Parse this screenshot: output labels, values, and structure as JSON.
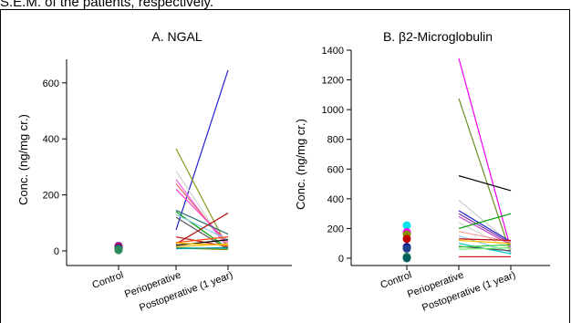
{
  "caption": "S.E.M. of the patients, respectively.",
  "chart_data": [
    {
      "type": "scatter+line",
      "title": "A. NGAL",
      "ylabel": "Conc. (ng/mg cr.)",
      "xlabel": "",
      "categories": [
        "Control",
        "Perioperative",
        "Postoperative (1 year)"
      ],
      "ylim": [
        -50,
        700
      ],
      "yticks": [
        0,
        200,
        400,
        600
      ],
      "grid": false,
      "control_points": [
        {
          "value": 18,
          "color": "#7030a0"
        },
        {
          "value": 15,
          "color": "#cc00cc"
        },
        {
          "value": 12,
          "color": "#c00000"
        },
        {
          "value": 9,
          "color": "#1f3f8f"
        },
        {
          "value": 6,
          "color": "#008080"
        },
        {
          "value": 3,
          "color": "#2e8b57"
        }
      ],
      "series": [
        {
          "values": [
            75,
            645
          ],
          "color": "#2222cc"
        },
        {
          "values": [
            365,
            10
          ],
          "color": "#8b9a1a"
        },
        {
          "values": [
            285,
            5
          ],
          "color": "#d3d3d3"
        },
        {
          "values": [
            255,
            8
          ],
          "color": "#ee66ee"
        },
        {
          "values": [
            240,
            20
          ],
          "color": "#e07070"
        },
        {
          "values": [
            220,
            30
          ],
          "color": "#ff44cc"
        },
        {
          "values": [
            145,
            60
          ],
          "color": "#2a6f6f"
        },
        {
          "values": [
            140,
            8
          ],
          "color": "#00a000"
        },
        {
          "values": [
            130,
            40
          ],
          "color": "#87ceeb"
        },
        {
          "values": [
            120,
            5
          ],
          "color": "#555555"
        },
        {
          "values": [
            50,
            15
          ],
          "color": "#cc2222"
        },
        {
          "values": [
            25,
            135
          ],
          "color": "#b01010"
        },
        {
          "values": [
            30,
            50
          ],
          "color": "#ff4400"
        },
        {
          "values": [
            20,
            40
          ],
          "color": "#000000"
        },
        {
          "values": [
            28,
            20
          ],
          "color": "#ffbf00"
        },
        {
          "values": [
            15,
            25
          ],
          "color": "#f4b400"
        },
        {
          "values": [
            12,
            8
          ],
          "color": "#20c0c0"
        },
        {
          "values": [
            10,
            5
          ],
          "color": "#888800"
        },
        {
          "values": [
            8,
            12
          ],
          "color": "#0099aa"
        }
      ]
    },
    {
      "type": "scatter+line",
      "title": "B. β2-Microglobulin",
      "ylabel": "Conc. (ng/mg cr.)",
      "xlabel": "",
      "categories": [
        "Control",
        "Perioperative",
        "Postoperative (1 year)"
      ],
      "ylim": [
        -50,
        1400
      ],
      "yticks": [
        0,
        200,
        400,
        600,
        800,
        1000,
        1200,
        1400
      ],
      "grid": false,
      "control_points": [
        {
          "value": 220,
          "color": "#00e5ee"
        },
        {
          "value": 175,
          "color": "#ff00ff"
        },
        {
          "value": 160,
          "color": "#8b8b00"
        },
        {
          "value": 130,
          "color": "#c00000"
        },
        {
          "value": 75,
          "color": "#000080"
        },
        {
          "value": 65,
          "color": "#1f3f8f"
        },
        {
          "value": 10,
          "color": "#2e8b57"
        },
        {
          "value": 0,
          "color": "#006060"
        }
      ],
      "series": [
        {
          "values": [
            1345,
            60
          ],
          "color": "#ee00ee"
        },
        {
          "values": [
            1075,
            30
          ],
          "color": "#6b8e23"
        },
        {
          "values": [
            555,
            455
          ],
          "color": "#000000"
        },
        {
          "values": [
            390,
            100
          ],
          "color": "#cccccc"
        },
        {
          "values": [
            320,
            110
          ],
          "color": "#2222cc"
        },
        {
          "values": [
            300,
            100
          ],
          "color": "#7b3fa0"
        },
        {
          "values": [
            280,
            90
          ],
          "color": "#cc44cc"
        },
        {
          "values": [
            240,
            60
          ],
          "color": "#d3d3d3"
        },
        {
          "values": [
            200,
            300
          ],
          "color": "#00a000"
        },
        {
          "values": [
            180,
            110
          ],
          "color": "#ff9999"
        },
        {
          "values": [
            150,
            40
          ],
          "color": "#87ceeb"
        },
        {
          "values": [
            130,
            120
          ],
          "color": "#c00000"
        },
        {
          "values": [
            120,
            100
          ],
          "color": "#ffbf00"
        },
        {
          "values": [
            100,
            30
          ],
          "color": "#00cccc"
        },
        {
          "values": [
            80,
            50
          ],
          "color": "#555555"
        },
        {
          "values": [
            75,
            90
          ],
          "color": "#33cc33"
        },
        {
          "values": [
            60,
            70
          ],
          "color": "#66ee66"
        },
        {
          "values": [
            10,
            10
          ],
          "color": "#cc2222"
        }
      ]
    }
  ]
}
